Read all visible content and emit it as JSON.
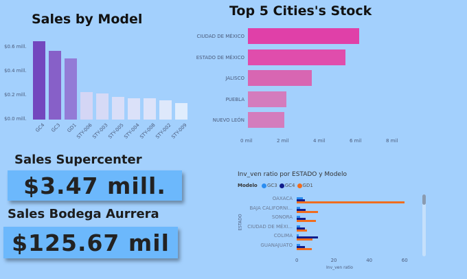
{
  "charts": {
    "sales_by_model": {
      "title": "Sales by Model",
      "y_ticks": [
        "$0.6 mill.",
        "$0.4 mill.",
        "$0.2 mill.",
        "$0.0 mill."
      ]
    },
    "top_cities": {
      "title": "Top 5 Cities's Stock",
      "x_ticks": [
        "0 mil",
        "2 mil",
        "4 mil",
        "6 mil",
        "8 mil"
      ]
    },
    "inv_ratio": {
      "title": "Inv_ven ratio por ESTADO y Modelo",
      "legend_label": "Modelo",
      "legend": [
        "GC3",
        "GC4",
        "GD1"
      ],
      "ylabel": "ESTADO",
      "xlabel": "Inv_ven ratio",
      "x_ticks": [
        "0",
        "20",
        "40",
        "60"
      ]
    }
  },
  "kpis": {
    "supercenter": {
      "label": "Sales Supercenter",
      "value": "$3.47 mill."
    },
    "bodega": {
      "label": "Sales Bodega Aurrera",
      "value": "$125.67 mil"
    }
  },
  "chart_data": [
    {
      "type": "bar",
      "title": "Sales by Model",
      "xlabel": "",
      "ylabel": "",
      "categories": [
        "GC4",
        "GC3",
        "GD1",
        "STY-006",
        "STY-003",
        "STY-005",
        "STY-004",
        "STY-008",
        "STY-002",
        "STY-009"
      ],
      "values": [
        0.65,
        0.57,
        0.51,
        0.23,
        0.22,
        0.19,
        0.18,
        0.18,
        0.16,
        0.14
      ],
      "unit": "$ mill.",
      "ylim": [
        0,
        0.7
      ],
      "colors": [
        "#7347be",
        "#8760c8",
        "#937bd6",
        "#d4d6f5",
        "#d6daf6",
        "#d9def8",
        "#dbe1f9",
        "#dce3fa",
        "#dee8fb",
        "#e0edfd"
      ]
    },
    {
      "type": "bar",
      "orientation": "horizontal",
      "title": "Top 5 Cities's Stock",
      "categories": [
        "CIUDAD DE MÉXICO",
        "ESTADO DE MÉXICO",
        "JALISCO",
        "PUEBLA",
        "NUEVO LEÓN"
      ],
      "values": [
        7.0,
        6.1,
        4.0,
        2.4,
        2.3
      ],
      "unit": "mil",
      "xlim": [
        0,
        8
      ],
      "colors": [
        "#e040a8",
        "#e04dac",
        "#d866b2",
        "#d47cbd",
        "#d47cbd"
      ]
    },
    {
      "type": "bar",
      "orientation": "horizontal",
      "title": "Inv_ven ratio por ESTADO y Modelo",
      "xlabel": "Inv_ven ratio",
      "ylabel": "ESTADO",
      "categories": [
        "OAXACA",
        "BAJA CALIFORNI...",
        "SONORA",
        "CIUDAD DE MÉXI...",
        "COLIMA",
        "GUANAJUATO"
      ],
      "series": [
        {
          "name": "GC3",
          "color": "#2b8df0",
          "values": [
            3.5,
            2,
            2,
            2,
            1,
            2
          ]
        },
        {
          "name": "GC4",
          "color": "#0f1d8c",
          "values": [
            4.8,
            5,
            5,
            4.5,
            12,
            4.5
          ]
        },
        {
          "name": "GD1",
          "color": "#f06d1f",
          "values": [
            61,
            12,
            11,
            6,
            9,
            8.5
          ]
        }
      ],
      "xlim": [
        0,
        70
      ],
      "legend_position": "top-left"
    }
  ]
}
